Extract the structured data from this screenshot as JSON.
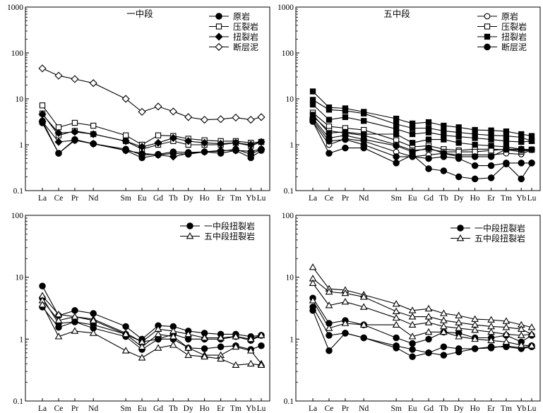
{
  "figure": {
    "y_tick_labels": [
      "0.1",
      "1",
      "10",
      "100",
      "1000"
    ]
  },
  "chart_data": [
    {
      "type": "line",
      "title": "一中段",
      "xlabel": "",
      "ylabel": "",
      "y_scale": "log",
      "ylim": [
        0.1,
        1000
      ],
      "grid": false,
      "legend_position": "top-right",
      "categories": [
        "La",
        "Ce",
        "Pr",
        "Nd",
        "Sm",
        "Eu",
        "Gd",
        "Tb",
        "Dy",
        "Ho",
        "Er",
        "Tm",
        "Yb",
        "Lu"
      ],
      "series": [
        {
          "name": "原岩",
          "marker": "filled-circle",
          "label_in_legend": true,
          "values": [
            3.0,
            0.65,
            1.25,
            1.05,
            0.75,
            0.52,
            0.6,
            0.65,
            0.62,
            0.7,
            0.65,
            0.75,
            0.52,
            0.75
          ]
        },
        {
          "name": "原岩",
          "marker": "filled-circle",
          "label_in_legend": false,
          "values": [
            3.3,
            0.65,
            1.3,
            1.05,
            0.8,
            0.6,
            0.62,
            0.7,
            0.68,
            0.7,
            0.72,
            0.8,
            0.62,
            0.8
          ]
        },
        {
          "name": "压裂岩",
          "marker": "open-square",
          "label_in_legend": true,
          "values": [
            7.2,
            2.4,
            3.0,
            2.6,
            1.6,
            1.0,
            1.6,
            1.55,
            1.35,
            1.25,
            1.2,
            1.2,
            1.1,
            1.15
          ]
        },
        {
          "name": "压裂岩",
          "marker": "open-square",
          "label_in_legend": false,
          "values": [
            4.8,
            1.6,
            2.0,
            1.7,
            1.2,
            0.8,
            1.0,
            1.2,
            1.0,
            1.0,
            1.0,
            1.1,
            0.95,
            1.15
          ]
        },
        {
          "name": "扭裂岩",
          "marker": "filled-diamond",
          "label_in_legend": true,
          "values": [
            4.6,
            1.8,
            1.9,
            1.7,
            1.2,
            0.9,
            1.1,
            1.4,
            1.2,
            1.1,
            1.05,
            1.1,
            1.0,
            1.15
          ]
        },
        {
          "name": "扭裂岩",
          "marker": "filled-diamond",
          "label_in_legend": false,
          "values": [
            3.2,
            1.15,
            1.25,
            1.05,
            0.75,
            0.65,
            0.6,
            0.55,
            0.65,
            0.7,
            0.75,
            0.75,
            0.72,
            0.8
          ]
        },
        {
          "name": "断层泥",
          "marker": "open-diamond",
          "label_in_legend": true,
          "values": [
            46,
            32,
            27,
            22,
            10,
            5.2,
            6.8,
            5.3,
            4.0,
            3.5,
            3.6,
            3.9,
            3.5,
            4.0
          ]
        }
      ]
    },
    {
      "type": "line",
      "title": "五中段",
      "xlabel": "",
      "ylabel": "",
      "y_scale": "log",
      "ylim": [
        0.1,
        1000
      ],
      "grid": false,
      "legend_position": "top-right",
      "categories": [
        "La",
        "Ce",
        "Pr",
        "Nd",
        "Sm",
        "Eu",
        "Gd",
        "Tb",
        "Dy",
        "Ho",
        "Er",
        "Tm",
        "Yb",
        "Lu"
      ],
      "series": [
        {
          "name": "原岩",
          "marker": "open-circle",
          "label_in_legend": true,
          "values": [
            3.2,
            1.0,
            1.35,
            1.2,
            0.7,
            0.55,
            0.6,
            0.65,
            0.6,
            0.6,
            0.6,
            0.65,
            0.62,
            0.78
          ]
        },
        {
          "name": "压裂岩",
          "marker": "open-square",
          "label_in_legend": true,
          "values": [
            5.0,
            2.5,
            2.3,
            2.1,
            1.25,
            0.9,
            0.95,
            0.8,
            0.75,
            0.8,
            0.8,
            0.78,
            0.7,
            0.78
          ]
        },
        {
          "name": "压裂岩",
          "marker": "open-square",
          "label_in_legend": false,
          "values": [
            4.2,
            2.0,
            1.8,
            1.6,
            1.0,
            0.75,
            0.8,
            0.7,
            0.7,
            0.7,
            0.75,
            0.8,
            0.75,
            0.78
          ]
        },
        {
          "name": "扭裂岩",
          "marker": "filled-square",
          "label_in_legend": true,
          "values": [
            14.5,
            6.5,
            6.2,
            5.2,
            3.7,
            2.9,
            3.1,
            2.6,
            2.4,
            2.1,
            2.05,
            1.95,
            1.7,
            1.55
          ]
        },
        {
          "name": "扭裂岩",
          "marker": "filled-square",
          "label_in_legend": false,
          "values": [
            9.5,
            5.8,
            5.5,
            4.8,
            2.8,
            2.3,
            2.3,
            2.0,
            1.85,
            1.7,
            1.6,
            1.55,
            1.45,
            1.2
          ]
        },
        {
          "name": "扭裂岩",
          "marker": "filled-square",
          "label_in_legend": false,
          "values": [
            7.5,
            3.5,
            4.0,
            3.3,
            2.2,
            1.7,
            1.85,
            1.6,
            1.5,
            1.4,
            1.3,
            1.2,
            1.15,
            1.2
          ]
        },
        {
          "name": "扭裂岩",
          "marker": "filled-square",
          "label_in_legend": false,
          "values": [
            4.5,
            1.8,
            1.9,
            1.7,
            1.7,
            1.1,
            1.3,
            1.3,
            1.1,
            1.0,
            0.95,
            0.9,
            0.8,
            0.78
          ]
        },
        {
          "name": "断层泥",
          "marker": "filled-circle",
          "label_in_legend": true,
          "values": [
            3.2,
            0.65,
            0.85,
            0.85,
            0.4,
            0.6,
            0.3,
            0.27,
            0.2,
            0.18,
            0.19,
            0.38,
            0.18,
            0.4
          ]
        },
        {
          "name": "断层泥",
          "marker": "filled-circle",
          "label_in_legend": false,
          "values": [
            3.5,
            1.2,
            1.3,
            1.0,
            0.55,
            0.55,
            0.5,
            0.55,
            0.5,
            0.35,
            0.35,
            0.4,
            0.4,
            0.4
          ]
        },
        {
          "name": "断层泥",
          "marker": "filled-circle",
          "label_in_legend": false,
          "values": [
            3.8,
            1.4,
            1.6,
            1.3,
            0.95,
            0.7,
            0.85,
            0.65,
            0.55,
            0.55,
            0.55,
            0.8,
            0.8,
            0.78
          ]
        }
      ]
    },
    {
      "type": "line",
      "title": "",
      "xlabel": "",
      "ylabel": "",
      "y_scale": "log",
      "ylim": [
        0.1,
        100
      ],
      "grid": false,
      "legend_position": "top-right",
      "categories": [
        "La",
        "Ce",
        "Pr",
        "Nd",
        "Sm",
        "Eu",
        "Gd",
        "Tb",
        "Dy",
        "Ho",
        "Er",
        "Tm",
        "Yb",
        "Lu"
      ],
      "series": [
        {
          "name": "一中段扭裂岩",
          "marker": "filled-circle",
          "label_in_legend": true,
          "values": [
            7.2,
            2.4,
            2.9,
            2.6,
            1.6,
            1.0,
            1.65,
            1.6,
            1.35,
            1.25,
            1.2,
            1.2,
            1.1,
            1.15
          ]
        },
        {
          "name": "一中段扭裂岩",
          "marker": "filled-circle",
          "label_in_legend": false,
          "values": [
            4.6,
            1.8,
            1.9,
            1.7,
            1.2,
            0.9,
            1.0,
            1.2,
            1.0,
            1.0,
            1.0,
            1.1,
            0.95,
            1.15
          ]
        },
        {
          "name": "一中段扭裂岩",
          "marker": "filled-circle",
          "label_in_legend": false,
          "values": [
            3.3,
            1.55,
            1.9,
            1.5,
            1.1,
            0.68,
            1.0,
            1.0,
            0.72,
            0.7,
            0.75,
            0.78,
            0.68,
            0.78
          ]
        },
        {
          "name": "五中段扭裂岩",
          "marker": "open-triangle",
          "label_in_legend": true,
          "values": [
            5.0,
            2.5,
            2.3,
            2.1,
            1.25,
            0.9,
            1.45,
            1.35,
            1.2,
            1.05,
            1.05,
            1.1,
            1.0,
            1.15
          ]
        },
        {
          "name": "五中段扭裂岩",
          "marker": "open-triangle",
          "label_in_legend": false,
          "values": [
            4.2,
            2.0,
            2.3,
            2.0,
            1.2,
            0.75,
            1.2,
            1.1,
            0.72,
            0.55,
            0.55,
            0.75,
            0.65,
            0.4
          ]
        },
        {
          "name": "五中段扭裂岩",
          "marker": "open-triangle",
          "label_in_legend": false,
          "values": [
            3.6,
            1.1,
            1.35,
            1.25,
            0.65,
            0.5,
            0.72,
            0.8,
            0.55,
            0.52,
            0.48,
            0.38,
            0.4,
            0.38
          ]
        }
      ]
    },
    {
      "type": "line",
      "title": "",
      "xlabel": "",
      "ylabel": "",
      "y_scale": "log",
      "ylim": [
        0.1,
        100
      ],
      "grid": false,
      "legend_position": "top-right",
      "categories": [
        "La",
        "Ce",
        "Pr",
        "Nd",
        "Sm",
        "Eu",
        "Gd",
        "Tb",
        "Dy",
        "Ho",
        "Er",
        "Tm",
        "Yb",
        "Lu"
      ],
      "series": [
        {
          "name": "一中段扭裂岩",
          "marker": "filled-circle",
          "label_in_legend": true,
          "values": [
            4.6,
            1.8,
            2.0,
            1.7,
            1.05,
            0.85,
            1.0,
            1.3,
            1.25,
            1.05,
            1.05,
            1.15,
            0.9,
            1.15
          ]
        },
        {
          "name": "一中段扭裂岩",
          "marker": "filled-circle",
          "label_in_legend": false,
          "values": [
            3.3,
            1.15,
            1.25,
            1.05,
            0.78,
            0.68,
            0.6,
            0.75,
            0.7,
            0.7,
            0.72,
            0.78,
            0.72,
            0.78
          ]
        },
        {
          "name": "一中段扭裂岩",
          "marker": "filled-circle",
          "label_in_legend": false,
          "values": [
            2.9,
            0.65,
            1.25,
            1.05,
            0.72,
            0.52,
            0.6,
            0.55,
            0.62,
            0.7,
            0.75,
            0.75,
            0.7,
            0.75
          ]
        },
        {
          "name": "五中段扭裂岩",
          "marker": "open-triangle",
          "label_in_legend": true,
          "values": [
            14.5,
            6.5,
            6.2,
            5.2,
            3.7,
            2.9,
            3.1,
            2.6,
            2.4,
            2.1,
            2.05,
            1.95,
            1.7,
            1.55
          ]
        },
        {
          "name": "五中段扭裂岩",
          "marker": "open-triangle",
          "label_in_legend": false,
          "values": [
            9.5,
            5.8,
            5.5,
            4.8,
            2.8,
            2.3,
            2.3,
            2.0,
            1.85,
            1.7,
            1.6,
            1.55,
            1.45,
            1.2
          ]
        },
        {
          "name": "五中段扭裂岩",
          "marker": "open-triangle",
          "label_in_legend": false,
          "values": [
            8.0,
            3.5,
            4.0,
            3.3,
            2.2,
            1.7,
            1.85,
            1.6,
            1.5,
            1.4,
            1.3,
            1.2,
            1.15,
            1.2
          ]
        },
        {
          "name": "五中段扭裂岩",
          "marker": "open-triangle",
          "label_in_legend": false,
          "values": [
            4.2,
            1.5,
            1.8,
            1.7,
            1.7,
            1.1,
            1.3,
            1.3,
            1.1,
            1.0,
            0.95,
            0.9,
            0.8,
            0.78
          ]
        }
      ]
    }
  ]
}
